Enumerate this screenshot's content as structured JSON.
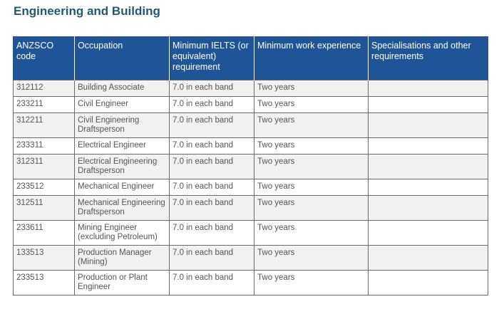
{
  "section": {
    "title": "Engineering and Building"
  },
  "table": {
    "headers": [
      "ANZSCO code",
      "Occupation",
      "Minimum IELTS (or equivalent) requirement",
      "Minimum work experience",
      "Specialisations and other requirements"
    ],
    "rows": [
      [
        "312112",
        "Building Associate",
        "7.0 in each band",
        "Two years",
        ""
      ],
      [
        "233211",
        "Civil Engineer",
        "7.0 in each band",
        "Two years",
        ""
      ],
      [
        "312211",
        "Civil Engineering Draftsperson",
        "7.0 in each band",
        "Two years",
        ""
      ],
      [
        "233311",
        "Electrical Engineer",
        "7.0 in each band",
        "Two years",
        ""
      ],
      [
        "312311",
        "Electrical Engineering Draftsperson",
        "7.0 in each band",
        "Two years",
        ""
      ],
      [
        "233512",
        "Mechanical Engineer",
        "7.0 in each band",
        "Two years",
        ""
      ],
      [
        "312511",
        "Mechanical Engineering Draftsperson",
        "7.0 in each band",
        "Two years",
        ""
      ],
      [
        "233611",
        "Mining Engineer (excluding Petroleum)",
        "7.0 in each band",
        "Two years",
        ""
      ],
      [
        "133513",
        "Production Manager (Mining)",
        "7.0 in each band",
        "Two years",
        ""
      ],
      [
        "233513",
        "Production or Plant Engineer",
        "7.0 in each band",
        "Two years",
        ""
      ]
    ]
  }
}
